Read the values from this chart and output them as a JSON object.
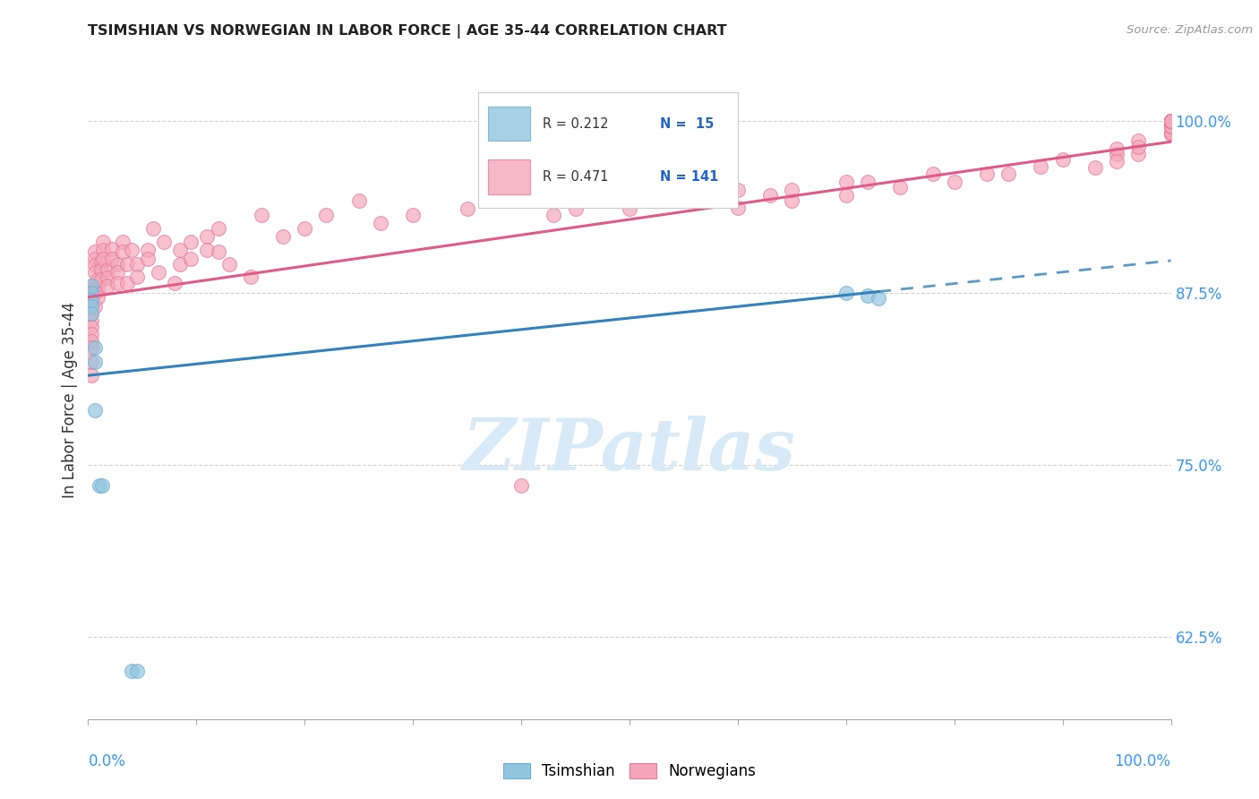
{
  "title": "TSIMSHIAN VS NORWEGIAN IN LABOR FORCE | AGE 35-44 CORRELATION CHART",
  "source_text": "Source: ZipAtlas.com",
  "ylabel": "In Labor Force | Age 35-44",
  "legend_label1": "Tsimshian",
  "legend_label2": "Norwegians",
  "R_tsimshian": 0.212,
  "N_tsimshian": 15,
  "R_norwegian": 0.471,
  "N_norwegian": 141,
  "tsimshian_color": "#92c5de",
  "norwegian_color": "#f4a7b9",
  "tsimshian_edge_color": "#6baed6",
  "norwegian_edge_color": "#e8789a",
  "tsimshian_line_color": "#3182bd",
  "norwegian_line_color": "#e05a8a",
  "watermark_color": "#d8eaf7",
  "background_color": "#ffffff",
  "grid_color": "#cccccc",
  "xlim": [
    0.0,
    1.0
  ],
  "ylim": [
    0.565,
    1.03
  ],
  "yticks": [
    0.625,
    0.75,
    0.875,
    1.0
  ],
  "ytick_labels": [
    "62.5%",
    "75.0%",
    "87.5%",
    "100.0%"
  ],
  "tsimshian_x": [
    0.003,
    0.003,
    0.003,
    0.003,
    0.003,
    0.006,
    0.006,
    0.006,
    0.01,
    0.013,
    0.04,
    0.045,
    0.7,
    0.72,
    0.73
  ],
  "tsimshian_y": [
    0.88,
    0.875,
    0.87,
    0.865,
    0.86,
    0.835,
    0.825,
    0.79,
    0.735,
    0.735,
    0.6,
    0.6,
    0.875,
    0.873,
    0.871
  ],
  "norwegian_x": [
    0.003,
    0.003,
    0.003,
    0.003,
    0.003,
    0.003,
    0.003,
    0.003,
    0.003,
    0.003,
    0.003,
    0.003,
    0.006,
    0.006,
    0.006,
    0.006,
    0.006,
    0.006,
    0.006,
    0.009,
    0.009,
    0.009,
    0.012,
    0.012,
    0.012,
    0.014,
    0.014,
    0.014,
    0.018,
    0.018,
    0.018,
    0.022,
    0.022,
    0.027,
    0.027,
    0.027,
    0.032,
    0.032,
    0.036,
    0.036,
    0.04,
    0.045,
    0.045,
    0.055,
    0.055,
    0.06,
    0.065,
    0.07,
    0.08,
    0.085,
    0.085,
    0.095,
    0.095,
    0.11,
    0.11,
    0.12,
    0.12,
    0.13,
    0.15,
    0.16,
    0.18,
    0.2,
    0.22,
    0.25,
    0.27,
    0.3,
    0.35,
    0.37,
    0.4,
    0.43,
    0.45,
    0.45,
    0.5,
    0.5,
    0.52,
    0.54,
    0.54,
    0.58,
    0.6,
    0.6,
    0.63,
    0.65,
    0.65,
    0.7,
    0.7,
    0.72,
    0.75,
    0.78,
    0.8,
    0.83,
    0.85,
    0.88,
    0.9,
    0.93,
    0.95,
    0.95,
    0.95,
    0.97,
    0.97,
    0.97,
    1.0,
    1.0,
    1.0,
    1.0,
    1.0,
    1.0,
    1.0,
    1.0,
    1.0,
    1.0,
    1.0,
    1.0,
    1.0,
    1.0,
    1.0,
    1.0,
    1.0,
    1.0,
    1.0,
    1.0,
    1.0,
    1.0,
    1.0,
    1.0,
    1.0,
    1.0,
    1.0,
    1.0,
    1.0,
    1.0,
    1.0,
    1.0,
    1.0,
    1.0,
    1.0,
    1.0,
    1.0,
    1.0,
    1.0,
    1.0,
    1.0,
    1.0,
    1.0
  ],
  "norwegian_y": [
    0.88,
    0.875,
    0.87,
    0.865,
    0.86,
    0.855,
    0.85,
    0.845,
    0.84,
    0.835,
    0.825,
    0.815,
    0.905,
    0.9,
    0.895,
    0.89,
    0.88,
    0.875,
    0.865,
    0.885,
    0.878,
    0.872,
    0.898,
    0.892,
    0.885,
    0.912,
    0.906,
    0.9,
    0.892,
    0.886,
    0.88,
    0.907,
    0.9,
    0.896,
    0.89,
    0.882,
    0.912,
    0.905,
    0.896,
    0.882,
    0.906,
    0.896,
    0.887,
    0.906,
    0.9,
    0.922,
    0.89,
    0.912,
    0.882,
    0.906,
    0.896,
    0.912,
    0.9,
    0.916,
    0.906,
    0.922,
    0.905,
    0.896,
    0.887,
    0.932,
    0.916,
    0.922,
    0.932,
    0.942,
    0.926,
    0.932,
    0.936,
    0.942,
    0.735,
    0.932,
    0.936,
    0.942,
    0.946,
    0.936,
    0.946,
    0.942,
    0.95,
    0.946,
    0.95,
    0.937,
    0.946,
    0.942,
    0.95,
    0.956,
    0.946,
    0.956,
    0.952,
    0.962,
    0.956,
    0.962,
    0.962,
    0.967,
    0.972,
    0.966,
    0.976,
    0.98,
    0.971,
    0.986,
    0.976,
    0.981,
    1.0,
    0.996,
    0.991,
    1.0,
    0.996,
    0.991,
    1.0,
    0.996,
    1.0,
    1.0,
    0.996,
    0.991,
    1.0,
    0.996,
    0.991,
    1.0,
    1.0,
    0.996,
    0.991,
    1.0,
    1.0,
    1.0,
    1.0,
    0.996,
    1.0,
    1.0,
    1.0,
    0.996,
    1.0,
    1.0,
    1.0,
    1.0,
    1.0,
    1.0,
    1.0,
    1.0,
    1.0,
    1.0,
    1.0,
    1.0,
    1.0,
    1.0,
    1.0
  ],
  "ts_line_x0": 0.0,
  "ts_line_x1": 0.73,
  "ts_line_y0": 0.815,
  "ts_line_y1": 0.876,
  "nor_line_x0": 0.0,
  "nor_line_x1": 1.0,
  "nor_line_y0": 0.872,
  "nor_line_y1": 0.985
}
